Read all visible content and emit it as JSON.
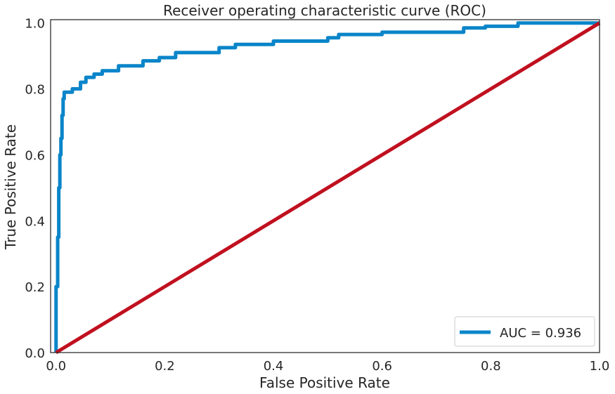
{
  "chart_data": {
    "type": "line",
    "title": "Receiver operating characteristic curve (ROC)",
    "xlabel": "False Positive Rate",
    "ylabel": "True Positive Rate",
    "xlim": [
      -0.01,
      1.0
    ],
    "ylim": [
      0.0,
      1.01
    ],
    "xticks": [
      0.0,
      0.2,
      0.4,
      0.6,
      0.8,
      1.0
    ],
    "xtick_labels": [
      "0.0",
      "0.2",
      "0.4",
      "0.6",
      "0.8",
      "1.0"
    ],
    "yticks": [
      0.0,
      0.2,
      0.4,
      0.6,
      0.8,
      1.0
    ],
    "ytick_labels": [
      "0.0",
      "0.2",
      "0.4",
      "0.6",
      "0.8",
      "1.0"
    ],
    "grid": false,
    "legend_position": "lower-right",
    "series": [
      {
        "name": "AUC = 0.936",
        "color": "#0a85c9",
        "x": [
          0.0,
          0.0,
          0.003,
          0.003,
          0.005,
          0.005,
          0.007,
          0.007,
          0.009,
          0.009,
          0.011,
          0.011,
          0.013,
          0.013,
          0.015,
          0.015,
          0.017,
          0.017,
          0.03,
          0.03,
          0.045,
          0.045,
          0.055,
          0.055,
          0.07,
          0.07,
          0.085,
          0.085,
          0.115,
          0.115,
          0.16,
          0.16,
          0.19,
          0.19,
          0.22,
          0.22,
          0.3,
          0.3,
          0.33,
          0.33,
          0.4,
          0.4,
          0.5,
          0.5,
          0.52,
          0.52,
          0.6,
          0.6,
          0.75,
          0.75,
          0.79,
          0.79,
          0.85,
          0.85,
          1.0
        ],
        "y": [
          0.0,
          0.2,
          0.2,
          0.35,
          0.35,
          0.5,
          0.5,
          0.6,
          0.6,
          0.65,
          0.65,
          0.72,
          0.72,
          0.77,
          0.77,
          0.79,
          0.79,
          0.79,
          0.79,
          0.8,
          0.8,
          0.82,
          0.82,
          0.835,
          0.835,
          0.845,
          0.845,
          0.855,
          0.855,
          0.87,
          0.87,
          0.885,
          0.885,
          0.895,
          0.895,
          0.91,
          0.91,
          0.925,
          0.925,
          0.935,
          0.935,
          0.945,
          0.945,
          0.955,
          0.955,
          0.965,
          0.965,
          0.972,
          0.972,
          0.985,
          0.985,
          0.99,
          0.99,
          1.0,
          1.0
        ]
      },
      {
        "name": "",
        "color": "#c0101f",
        "x": [
          0.0,
          1.0
        ],
        "y": [
          0.0,
          1.0
        ]
      }
    ],
    "legend": [
      {
        "label": "AUC = 0.936",
        "color": "#0a85c9"
      }
    ]
  }
}
